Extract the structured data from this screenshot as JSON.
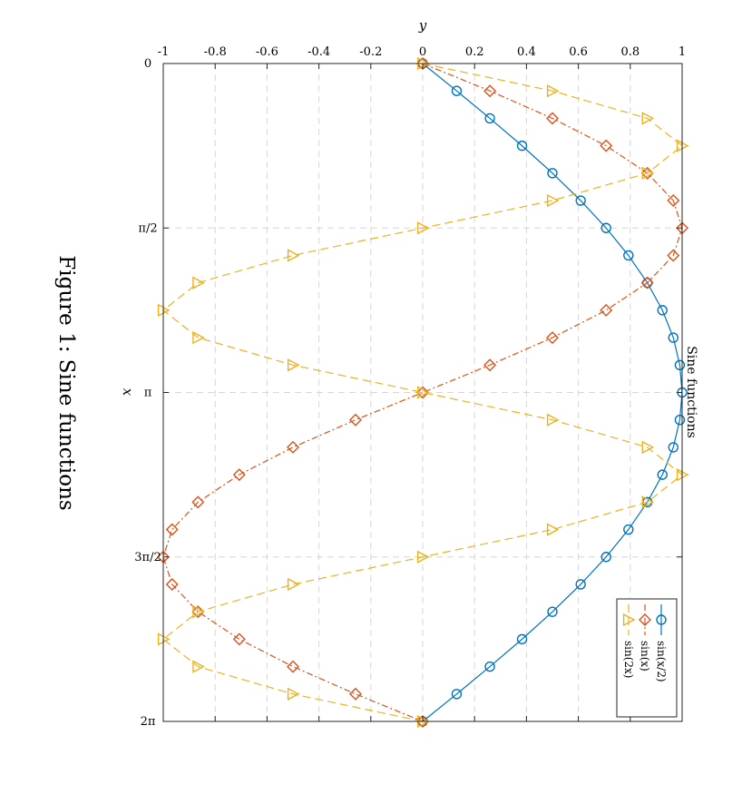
{
  "chart_data": {
    "type": "line",
    "title": "Sine functions",
    "xlabel": "x",
    "ylabel": "y",
    "xlim": [
      0,
      6.2832
    ],
    "ylim": [
      -1,
      1
    ],
    "x_ticks": [
      {
        "value": 0,
        "label": "0"
      },
      {
        "value": 1.5708,
        "label": "π/2"
      },
      {
        "value": 3.1416,
        "label": "π"
      },
      {
        "value": 4.7124,
        "label": "3π/2"
      },
      {
        "value": 6.2832,
        "label": "2π"
      }
    ],
    "y_ticks": [
      {
        "value": -1,
        "label": "-1"
      },
      {
        "value": -0.8,
        "label": "-0.8"
      },
      {
        "value": -0.6,
        "label": "-0.6"
      },
      {
        "value": -0.4,
        "label": "-0.4"
      },
      {
        "value": -0.2,
        "label": "-0.2"
      },
      {
        "value": 0,
        "label": "0"
      },
      {
        "value": 0.2,
        "label": "0.2"
      },
      {
        "value": 0.4,
        "label": "0.4"
      },
      {
        "value": 0.6,
        "label": "0.6"
      },
      {
        "value": 0.8,
        "label": "0.8"
      },
      {
        "value": 1,
        "label": "1"
      }
    ],
    "grid": true,
    "legend_position": "bottom-right",
    "x": [
      0,
      0.2618,
      0.5236,
      0.7854,
      1.0472,
      1.309,
      1.5708,
      1.8326,
      2.0944,
      2.3562,
      2.618,
      2.8798,
      3.1416,
      3.4034,
      3.6652,
      3.927,
      4.1888,
      4.4506,
      4.7124,
      4.9742,
      5.236,
      5.4978,
      5.7596,
      6.0214,
      6.2832
    ],
    "series": [
      {
        "name": "sin(x/2)",
        "color": "#0072bd",
        "line_style": "solid",
        "marker": "circle",
        "values": [
          0,
          0.131,
          0.259,
          0.383,
          0.5,
          0.609,
          0.707,
          0.793,
          0.866,
          0.924,
          0.966,
          0.991,
          1,
          0.991,
          0.966,
          0.924,
          0.866,
          0.793,
          0.707,
          0.609,
          0.5,
          0.383,
          0.259,
          0.131,
          0
        ]
      },
      {
        "name": "sin(x)",
        "color": "#d95319",
        "line_style": "dash-dot",
        "marker": "diamond",
        "values": [
          0,
          0.259,
          0.5,
          0.707,
          0.866,
          0.966,
          1,
          0.966,
          0.866,
          0.707,
          0.5,
          0.259,
          0,
          -0.259,
          -0.5,
          -0.707,
          -0.866,
          -0.966,
          -1,
          -0.966,
          -0.866,
          -0.707,
          -0.5,
          -0.259,
          0
        ]
      },
      {
        "name": "sin(2x)",
        "color": "#edb120",
        "line_style": "dashed",
        "marker": "triangle",
        "values": [
          0,
          0.5,
          0.866,
          1,
          0.866,
          0.5,
          0,
          -0.5,
          -0.866,
          -1,
          -0.866,
          -0.5,
          0,
          0.5,
          0.866,
          1,
          0.866,
          0.5,
          0,
          -0.5,
          -0.866,
          -1,
          -0.866,
          -0.5,
          0
        ]
      }
    ]
  },
  "caption": "Figure 1: Sine functions"
}
